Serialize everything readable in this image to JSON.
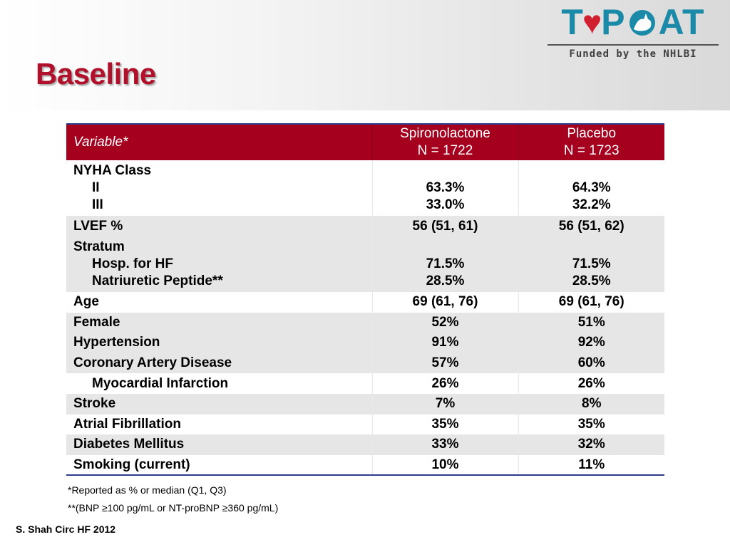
{
  "slide": {
    "title": "Baseline",
    "logo": {
      "word_pre": "T",
      "word_post": "P",
      "word_end": "AT",
      "subtitle": "Funded by the NHLBI"
    },
    "citation": "S. Shah Circ HF 2012"
  },
  "table": {
    "headers": {
      "variable": "Variable*",
      "spiro_name": "Spironolactone",
      "spiro_n": "N = 1722",
      "placebo_name": "Placebo",
      "placebo_n": "N = 1723"
    },
    "nyha": {
      "label": "NYHA Class",
      "sub1": "II",
      "sub1_spiro": "63.3%",
      "sub1_placebo": "64.3%",
      "sub2": "III",
      "sub2_spiro": "33.0%",
      "sub2_placebo": "32.2%"
    },
    "lvef": {
      "label": "LVEF %",
      "spiro": "56 (51, 61)",
      "placebo": "56 (51, 62)"
    },
    "stratum": {
      "label": "Stratum",
      "sub1": "Hosp. for HF",
      "sub1_spiro": "71.5%",
      "sub1_placebo": "71.5%",
      "sub2": "Natriuretic Peptide**",
      "sub2_spiro": "28.5%",
      "sub2_placebo": "28.5%"
    },
    "rows": [
      {
        "label": "Age",
        "spiro": "69 (61, 76)",
        "placebo": "69 (61, 76)"
      },
      {
        "label": "Female",
        "spiro": "52%",
        "placebo": "51%"
      },
      {
        "label": "Hypertension",
        "spiro": "91%",
        "placebo": "92%"
      },
      {
        "label": "Coronary Artery Disease",
        "spiro": "57%",
        "placebo": "60%"
      },
      {
        "label": "Myocardial Infarction",
        "spiro": "26%",
        "placebo": "26%"
      },
      {
        "label": "Stroke",
        "spiro": "7%",
        "placebo": "8%"
      },
      {
        "label": "Atrial Fibrillation",
        "spiro": "35%",
        "placebo": "35%"
      },
      {
        "label": "Diabetes Mellitus",
        "spiro": "33%",
        "placebo": "32%"
      },
      {
        "label": "Smoking (current)",
        "spiro": "10%",
        "placebo": "11%"
      }
    ]
  },
  "footnotes": {
    "f1": "*Reported as % or median (Q1, Q3)",
    "f2": "**(BNP ≥100 pg/mL or NT-proBNP ≥360 pg/mL)"
  },
  "colors": {
    "title": "#b0102a",
    "header_row": "#a6001f",
    "logo_teal": "#1a8aa8",
    "logo_heart": "#d01f2f",
    "row_shade": "#e6e6e6"
  }
}
